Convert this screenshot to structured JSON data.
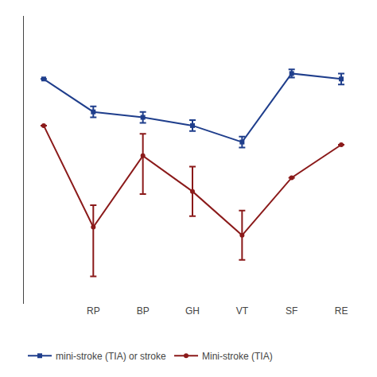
{
  "chart_data": {
    "type": "line",
    "categories": [
      null,
      "RP",
      "BP",
      "GH",
      "VT",
      "SF",
      "RE"
    ],
    "series": [
      {
        "name": "mini-stroke (TIA) or stroke",
        "color": "#1F3E8C",
        "marker": "square",
        "values": [
          82,
          70,
          68,
          65,
          59,
          84,
          82
        ],
        "yerr_lower": [
          0,
          2,
          2,
          2,
          2,
          1.5,
          2
        ],
        "yerr_upper": [
          0,
          2,
          2,
          2,
          2,
          1.5,
          2
        ]
      },
      {
        "name": "Mini-stroke (TIA)",
        "color": "#8B1A1A",
        "marker": "circle",
        "values": [
          65,
          28,
          54,
          41,
          25,
          46,
          58
        ],
        "yerr_lower": [
          0,
          18,
          14,
          9,
          9,
          0,
          0
        ],
        "yerr_upper": [
          0,
          8,
          8,
          9,
          9,
          0,
          0
        ]
      }
    ],
    "ylim": [
      0,
      105
    ],
    "yticks": [],
    "tick_labels": "x",
    "grid": false,
    "legend": "bottom"
  }
}
